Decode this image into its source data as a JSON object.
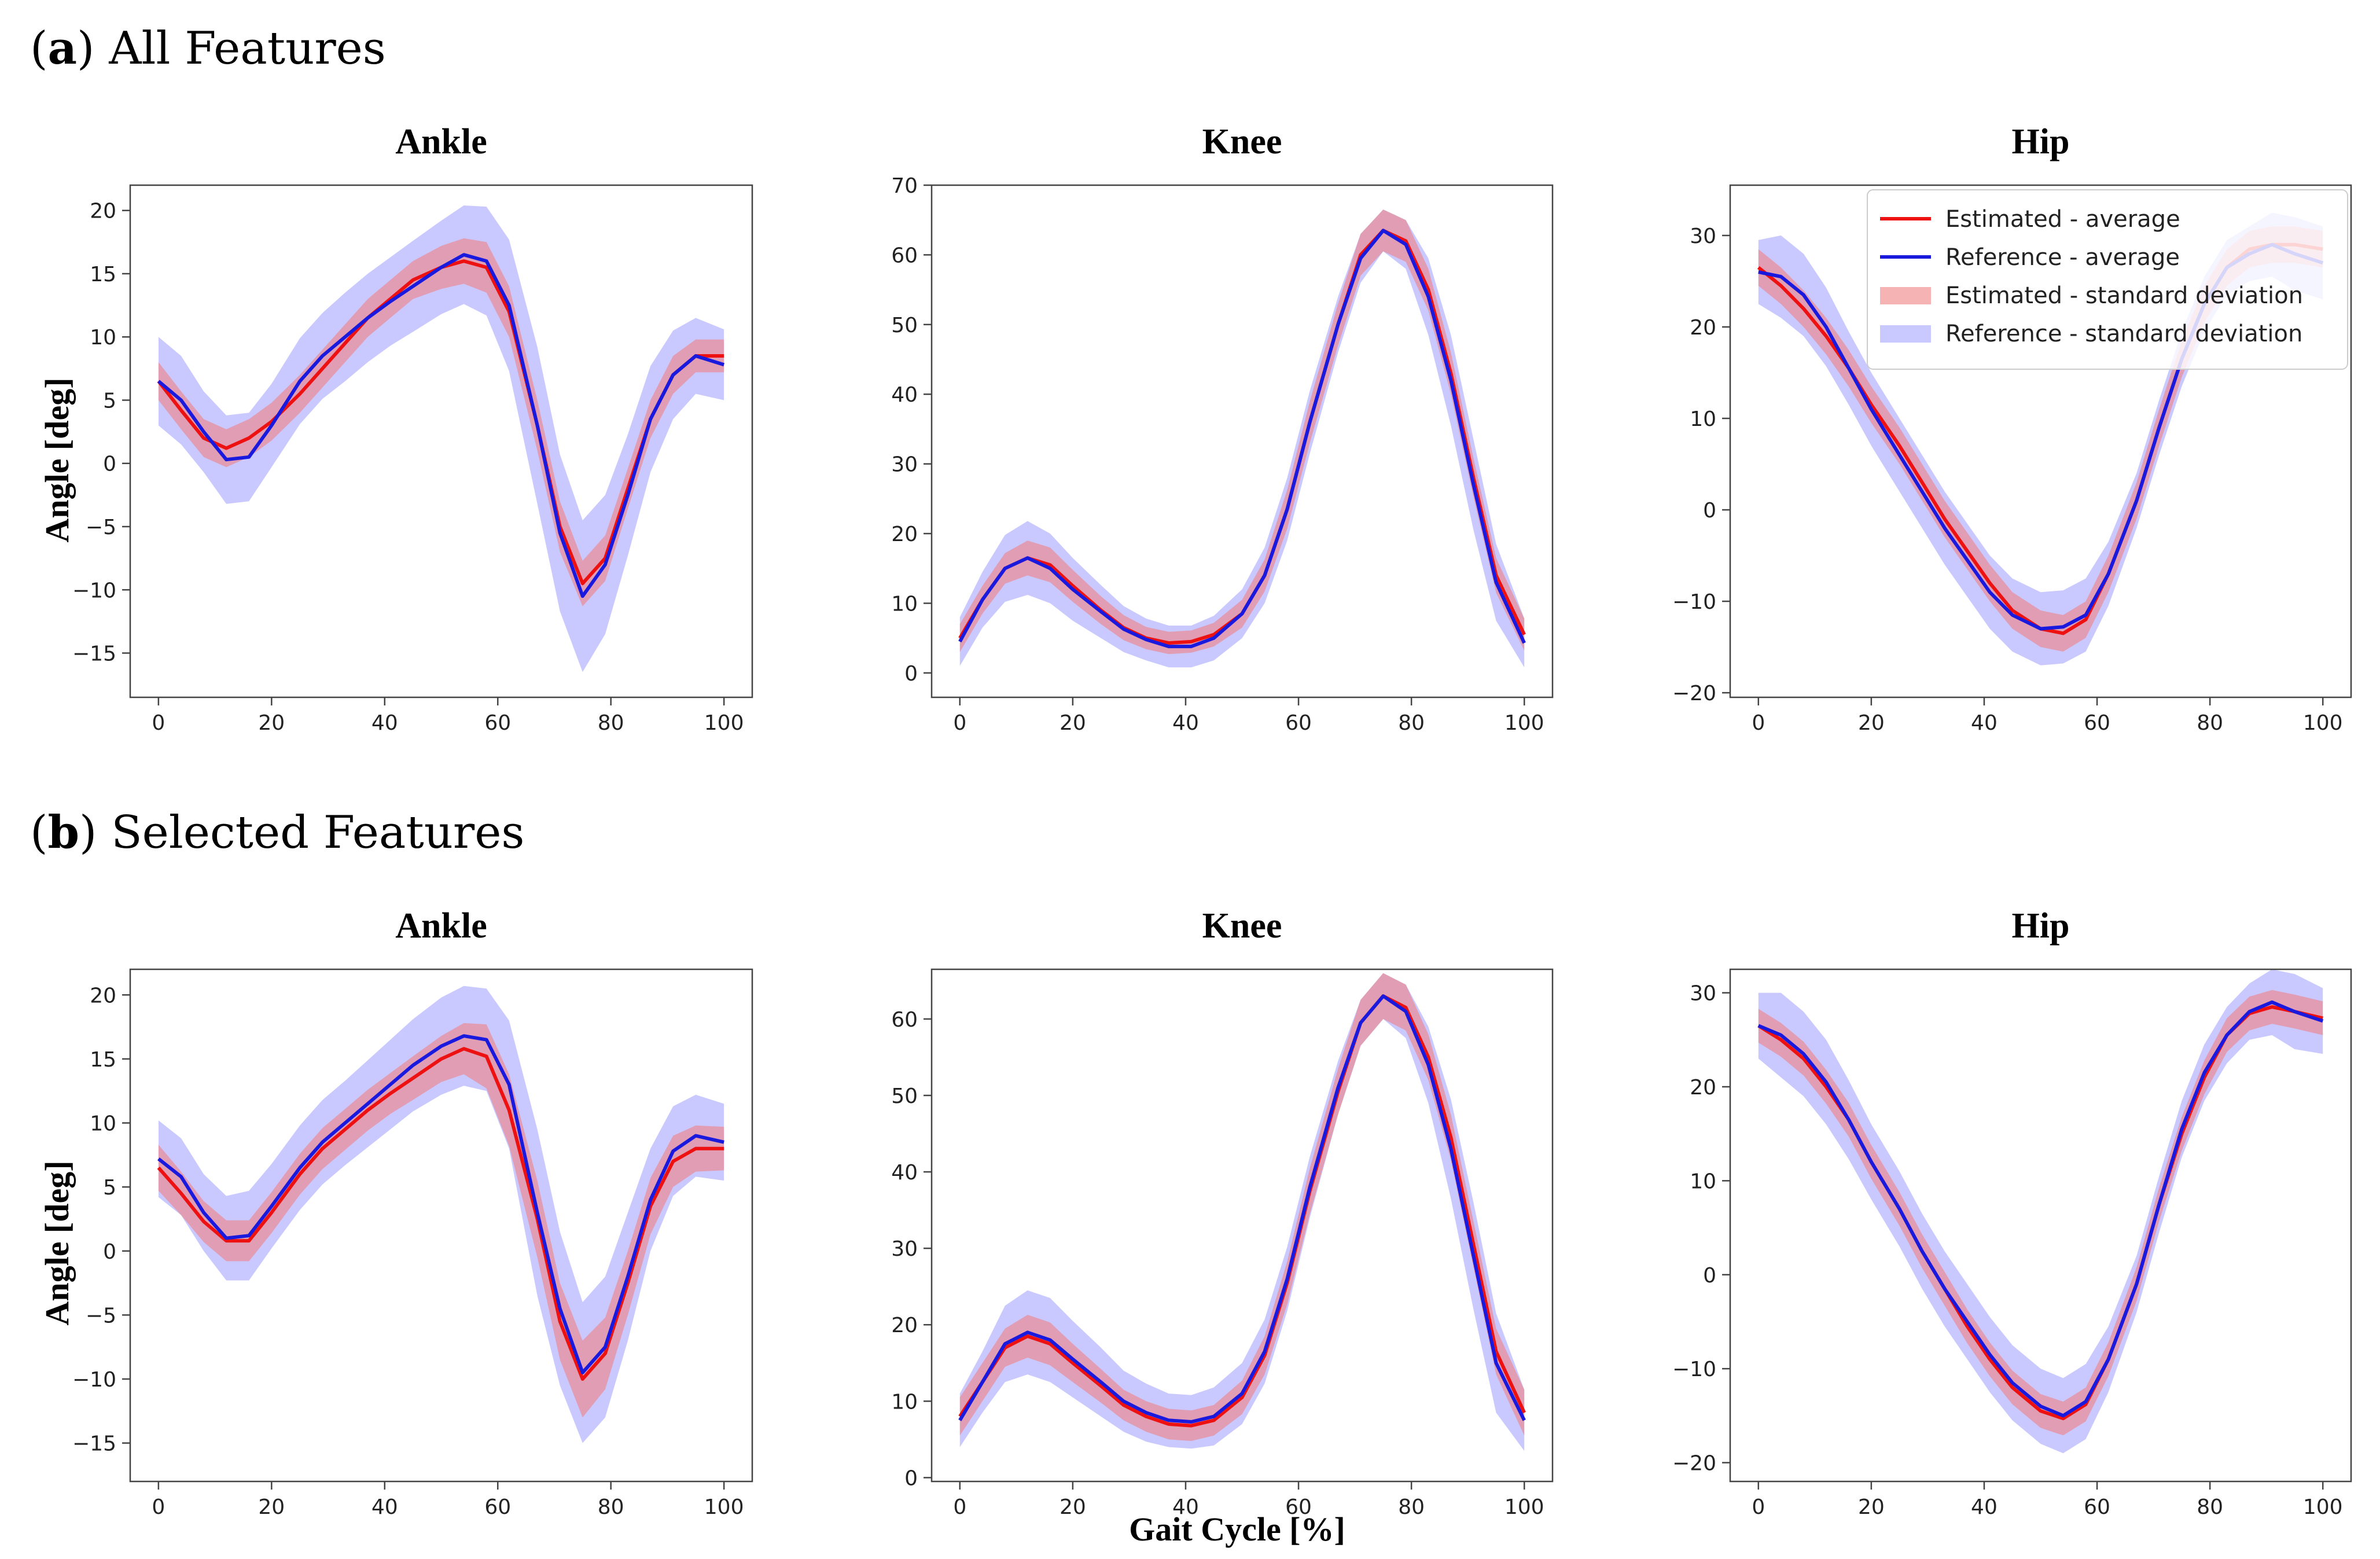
{
  "section_a": {
    "letter": "a",
    "text": "All Features"
  },
  "section_b": {
    "letter": "b",
    "text": "Selected Features"
  },
  "x_axis_label": "Gait Cycle [%]",
  "y_axis_label": "Angle [deg]",
  "colors": {
    "estimated_line": "#ee1111",
    "reference_line": "#1a1adf",
    "estimated_band": "#f08080",
    "reference_band": "#9c9cff"
  },
  "legend": {
    "estimated_average": "Estimated - average",
    "reference_average": "Reference - average",
    "estimated_sd": "Estimated - standard deviation",
    "reference_sd": "Reference - standard deviation"
  },
  "chart_data": [
    {
      "id": "a-ankle",
      "section": "a",
      "type": "line",
      "title": "Ankle",
      "xlim": [
        -5,
        105
      ],
      "ylim": [
        -18.5,
        22
      ],
      "xticks": [
        0,
        20,
        40,
        60,
        80,
        100
      ],
      "yticks": [
        -15,
        -10,
        -5,
        0,
        5,
        10,
        15,
        20
      ],
      "x": [
        0,
        4,
        8,
        12,
        16,
        20,
        25,
        29,
        33,
        37,
        41,
        45,
        50,
        54,
        58,
        62,
        67,
        71,
        75,
        79,
        83,
        87,
        91,
        95,
        100
      ],
      "series": [
        {
          "name": "Estimated - average",
          "kind": "mean",
          "values": [
            6.5,
            4.2,
            2.0,
            1.2,
            2.0,
            3.3,
            5.5,
            7.5,
            9.5,
            11.5,
            13.0,
            14.5,
            15.5,
            16.0,
            15.5,
            12.0,
            3.0,
            -5.0,
            -9.5,
            -7.5,
            -2.0,
            3.5,
            7.0,
            8.5,
            8.5
          ],
          "sd": [
            1.5,
            1.5,
            1.5,
            1.5,
            1.5,
            1.5,
            1.5,
            1.5,
            1.5,
            1.5,
            1.5,
            1.5,
            1.7,
            1.8,
            2.0,
            2.0,
            2.0,
            2.0,
            1.8,
            1.8,
            1.6,
            1.5,
            1.5,
            1.3,
            1.3
          ]
        },
        {
          "name": "Reference - average",
          "kind": "mean",
          "values": [
            6.5,
            5.0,
            2.5,
            0.3,
            0.5,
            3.0,
            6.5,
            8.5,
            10.0,
            11.5,
            12.8,
            14.0,
            15.5,
            16.5,
            16.0,
            12.5,
            3.0,
            -5.5,
            -10.5,
            -8.0,
            -2.5,
            3.5,
            7.0,
            8.5,
            7.8
          ]
        },
        {
          "name": "Reference - standard deviation",
          "kind": "sd_band",
          "of": "Reference - average",
          "sd": [
            3.5,
            3.5,
            3.2,
            3.5,
            3.5,
            3.3,
            3.4,
            3.4,
            3.5,
            3.5,
            3.5,
            3.6,
            3.7,
            3.9,
            4.3,
            5.2,
            6.2,
            6.2,
            6.0,
            5.5,
            4.8,
            4.2,
            3.5,
            3.0,
            2.8
          ]
        }
      ]
    },
    {
      "id": "a-knee",
      "section": "a",
      "type": "line",
      "title": "Knee",
      "xlim": [
        -5,
        105
      ],
      "ylim": [
        -3.5,
        70
      ],
      "xticks": [
        0,
        20,
        40,
        60,
        80,
        100
      ],
      "yticks": [
        0,
        10,
        20,
        30,
        40,
        50,
        60,
        70
      ],
      "x": [
        0,
        4,
        8,
        12,
        16,
        20,
        25,
        29,
        33,
        37,
        41,
        45,
        50,
        54,
        58,
        62,
        67,
        71,
        75,
        79,
        83,
        87,
        91,
        95,
        100
      ],
      "series": [
        {
          "name": "Estimated - average",
          "kind": "mean",
          "values": [
            5.0,
            10.5,
            15.0,
            16.5,
            15.5,
            12.5,
            9.0,
            6.5,
            5.0,
            4.3,
            4.5,
            5.5,
            8.5,
            14.0,
            23.5,
            36.0,
            50.0,
            60.0,
            63.5,
            62.0,
            55.0,
            43.0,
            28.0,
            14.0,
            5.5
          ],
          "sd": [
            2.0,
            2.0,
            2.2,
            2.5,
            2.5,
            2.3,
            2.0,
            1.8,
            1.6,
            1.6,
            1.6,
            1.7,
            2.0,
            2.3,
            2.8,
            3.0,
            3.0,
            3.0,
            3.0,
            3.0,
            3.0,
            3.0,
            2.8,
            2.5,
            2.3
          ]
        },
        {
          "name": "Reference - average",
          "kind": "mean",
          "values": [
            4.5,
            10.5,
            15.0,
            16.5,
            15.0,
            12.0,
            8.8,
            6.3,
            4.8,
            3.8,
            3.8,
            5.0,
            8.5,
            14.0,
            23.5,
            36.0,
            50.0,
            59.5,
            63.5,
            61.5,
            54.0,
            42.0,
            27.0,
            13.0,
            4.3
          ]
        },
        {
          "name": "Reference - standard deviation",
          "kind": "sd_band",
          "of": "Reference - average",
          "sd": [
            3.5,
            4.0,
            4.8,
            5.3,
            5.0,
            4.5,
            3.8,
            3.3,
            3.0,
            3.0,
            3.0,
            3.2,
            3.5,
            4.0,
            4.5,
            4.5,
            4.0,
            3.5,
            3.0,
            3.5,
            5.5,
            6.5,
            6.5,
            5.5,
            3.5
          ]
        }
      ]
    },
    {
      "id": "a-hip",
      "section": "a",
      "type": "line",
      "title": "Hip",
      "xlim": [
        -5,
        105
      ],
      "ylim": [
        -20.5,
        35.5
      ],
      "xticks": [
        0,
        20,
        40,
        60,
        80,
        100
      ],
      "yticks": [
        -20,
        -10,
        0,
        10,
        20,
        30
      ],
      "legend_position": "top-right",
      "x": [
        0,
        4,
        8,
        12,
        16,
        20,
        25,
        29,
        33,
        37,
        41,
        45,
        50,
        54,
        58,
        62,
        67,
        71,
        75,
        79,
        83,
        87,
        91,
        95,
        100
      ],
      "series": [
        {
          "name": "Estimated - average",
          "kind": "mean",
          "values": [
            26.5,
            24.5,
            22.0,
            19.0,
            15.5,
            11.5,
            7.0,
            3.0,
            -1.0,
            -4.5,
            -8.0,
            -11.0,
            -13.0,
            -13.5,
            -12.0,
            -7.0,
            1.0,
            9.0,
            16.5,
            22.5,
            26.5,
            28.5,
            29.0,
            29.0,
            28.5
          ],
          "sd": [
            2.0,
            2.0,
            2.0,
            2.0,
            2.0,
            2.0,
            2.0,
            2.0,
            2.0,
            2.0,
            2.0,
            2.0,
            2.0,
            2.0,
            2.0,
            2.0,
            2.0,
            2.0,
            2.0,
            2.0,
            2.0,
            2.0,
            2.0,
            2.0,
            2.0
          ]
        },
        {
          "name": "Reference - average",
          "kind": "mean",
          "values": [
            26.0,
            25.5,
            23.5,
            20.0,
            15.5,
            11.0,
            6.0,
            2.0,
            -2.0,
            -5.5,
            -9.0,
            -11.5,
            -13.0,
            -12.8,
            -11.5,
            -7.0,
            1.0,
            9.0,
            16.5,
            22.5,
            26.5,
            28.0,
            29.0,
            28.0,
            27.0
          ],
          "sd": [
            3.5,
            4.5,
            4.5,
            4.3,
            4.0,
            4.0,
            4.0,
            4.0,
            4.0,
            4.0,
            4.0,
            4.0,
            4.0,
            4.0,
            4.0,
            3.5,
            3.0,
            3.0,
            3.0,
            3.0,
            3.0,
            3.0,
            3.5,
            4.0,
            4.0
          ]
        }
      ]
    },
    {
      "id": "b-ankle",
      "section": "b",
      "type": "line",
      "title": "Ankle",
      "xlim": [
        -5,
        105
      ],
      "ylim": [
        -18,
        22
      ],
      "xticks": [
        0,
        20,
        40,
        60,
        80,
        100
      ],
      "yticks": [
        -15,
        -10,
        -5,
        0,
        5,
        10,
        15,
        20
      ],
      "x": [
        0,
        4,
        8,
        12,
        16,
        20,
        25,
        29,
        33,
        37,
        41,
        45,
        50,
        54,
        58,
        62,
        67,
        71,
        75,
        79,
        83,
        87,
        91,
        95,
        100
      ],
      "series": [
        {
          "name": "Estimated - average",
          "kind": "mean",
          "values": [
            6.5,
            4.5,
            2.3,
            0.8,
            0.8,
            3.0,
            6.0,
            8.0,
            9.5,
            11.0,
            12.3,
            13.5,
            15.0,
            15.8,
            15.2,
            11.0,
            2.5,
            -5.5,
            -10.0,
            -8.0,
            -2.5,
            3.5,
            7.0,
            8.0,
            8.0
          ],
          "sd": [
            1.8,
            1.7,
            1.6,
            1.6,
            1.6,
            1.6,
            1.6,
            1.6,
            1.6,
            1.6,
            1.6,
            1.7,
            1.8,
            2.0,
            2.5,
            2.8,
            3.0,
            3.0,
            3.0,
            2.8,
            2.5,
            2.2,
            2.0,
            1.8,
            1.7
          ]
        },
        {
          "name": "Reference - average",
          "kind": "mean",
          "values": [
            7.2,
            5.8,
            3.0,
            1.0,
            1.2,
            3.5,
            6.5,
            8.5,
            10.0,
            11.5,
            13.0,
            14.5,
            16.0,
            16.8,
            16.5,
            13.0,
            3.0,
            -4.5,
            -9.5,
            -7.5,
            -2.0,
            4.0,
            7.8,
            9.0,
            8.5
          ],
          "sd": [
            3.0,
            3.0,
            3.0,
            3.3,
            3.5,
            3.3,
            3.3,
            3.3,
            3.3,
            3.4,
            3.5,
            3.6,
            3.8,
            3.9,
            4.0,
            5.0,
            6.5,
            6.0,
            5.5,
            5.5,
            5.0,
            4.0,
            3.5,
            3.2,
            3.0
          ]
        }
      ]
    },
    {
      "id": "b-knee",
      "section": "b",
      "type": "line",
      "title": "Knee",
      "xlim": [
        -5,
        105
      ],
      "ylim": [
        -0.5,
        66.5
      ],
      "xticks": [
        0,
        20,
        40,
        60,
        80,
        100
      ],
      "yticks": [
        0,
        10,
        20,
        30,
        40,
        50,
        60
      ],
      "x": [
        0,
        4,
        8,
        12,
        16,
        20,
        25,
        29,
        33,
        37,
        41,
        45,
        50,
        54,
        58,
        62,
        67,
        71,
        75,
        79,
        83,
        87,
        91,
        95,
        100
      ],
      "series": [
        {
          "name": "Estimated - average",
          "kind": "mean",
          "values": [
            8.0,
            12.5,
            17.0,
            18.5,
            17.5,
            15.0,
            12.0,
            9.5,
            8.0,
            7.0,
            6.8,
            7.5,
            10.5,
            16.0,
            25.5,
            37.5,
            50.5,
            59.5,
            63.0,
            61.5,
            55.0,
            44.5,
            30.5,
            16.5,
            8.5
          ],
          "sd": [
            2.5,
            2.5,
            2.5,
            2.8,
            2.8,
            2.5,
            2.2,
            2.0,
            2.0,
            2.0,
            2.0,
            2.0,
            2.2,
            2.5,
            2.8,
            3.0,
            3.0,
            3.0,
            3.0,
            3.0,
            3.0,
            3.0,
            3.0,
            3.0,
            3.0
          ]
        },
        {
          "name": "Reference - average",
          "kind": "mean",
          "values": [
            7.5,
            12.5,
            17.5,
            19.0,
            18.0,
            15.5,
            12.5,
            10.0,
            8.5,
            7.5,
            7.3,
            8.0,
            11.0,
            16.5,
            26.0,
            38.0,
            51.0,
            59.5,
            63.0,
            61.0,
            54.0,
            43.0,
            29.0,
            15.0,
            7.5
          ],
          "sd": [
            3.5,
            4.0,
            5.0,
            5.5,
            5.5,
            5.0,
            4.5,
            4.0,
            3.8,
            3.5,
            3.5,
            3.8,
            4.0,
            4.2,
            4.2,
            4.0,
            3.5,
            3.0,
            3.0,
            3.5,
            5.0,
            6.5,
            7.0,
            6.5,
            4.0
          ]
        }
      ]
    },
    {
      "id": "b-hip",
      "section": "b",
      "type": "line",
      "title": "Hip",
      "xlim": [
        -5,
        105
      ],
      "ylim": [
        -22,
        32.5
      ],
      "xticks": [
        0,
        20,
        40,
        60,
        80,
        100
      ],
      "yticks": [
        -20,
        -10,
        0,
        10,
        20,
        30
      ],
      "x": [
        0,
        4,
        8,
        12,
        16,
        20,
        25,
        29,
        33,
        37,
        41,
        45,
        50,
        54,
        58,
        62,
        67,
        71,
        75,
        79,
        83,
        87,
        91,
        95,
        100
      ],
      "series": [
        {
          "name": "Estimated - average",
          "kind": "mean",
          "values": [
            26.5,
            25.0,
            23.0,
            20.0,
            16.5,
            12.0,
            7.0,
            2.5,
            -1.5,
            -5.5,
            -9.0,
            -12.0,
            -14.5,
            -15.3,
            -13.8,
            -9.0,
            -1.0,
            7.5,
            15.0,
            21.0,
            25.5,
            27.8,
            28.5,
            28.0,
            27.3
          ],
          "sd": [
            1.8,
            1.8,
            1.8,
            1.8,
            1.8,
            1.8,
            1.8,
            1.8,
            1.8,
            1.8,
            1.8,
            1.8,
            1.8,
            1.8,
            1.8,
            1.8,
            1.8,
            1.8,
            1.8,
            1.8,
            1.8,
            1.8,
            1.8,
            1.8,
            1.8
          ]
        },
        {
          "name": "Reference - average",
          "kind": "mean",
          "values": [
            26.5,
            25.5,
            23.5,
            20.5,
            16.5,
            12.0,
            7.0,
            2.5,
            -1.5,
            -5.0,
            -8.5,
            -11.5,
            -14.0,
            -15.0,
            -13.5,
            -9.0,
            -1.0,
            7.5,
            15.5,
            21.5,
            25.5,
            28.0,
            29.0,
            28.0,
            27.0
          ],
          "sd": [
            3.5,
            4.5,
            4.5,
            4.5,
            4.2,
            4.0,
            4.0,
            4.0,
            4.0,
            4.0,
            4.0,
            4.0,
            4.0,
            4.0,
            4.0,
            3.5,
            3.0,
            3.0,
            3.0,
            3.0,
            3.0,
            3.0,
            3.5,
            4.0,
            3.5
          ]
        }
      ]
    }
  ]
}
